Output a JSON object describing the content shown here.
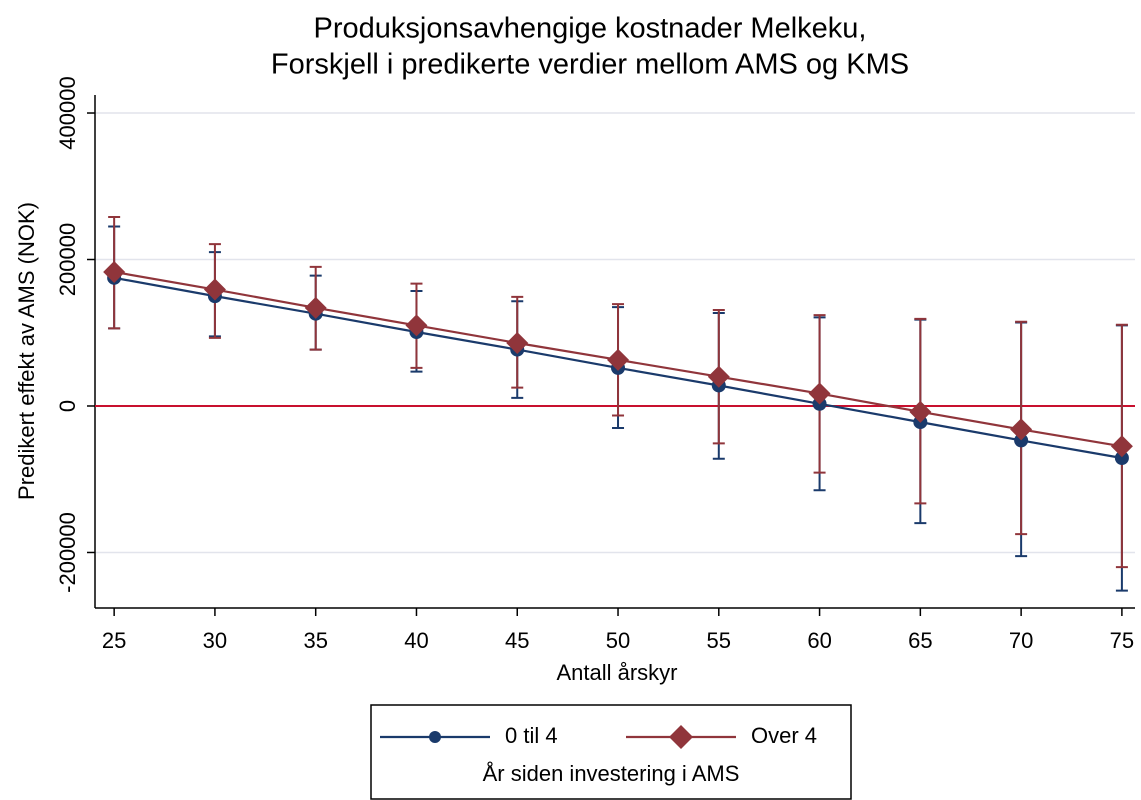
{
  "chart_data": {
    "type": "line",
    "title": [
      "Produksjonsavhengige kostnader Melkeku,",
      "Forskjell i predikerte verdier mellom AMS og KMS"
    ],
    "x_label": "Antall årskyr",
    "y_label": "Predikert effekt av AMS (NOK)",
    "x": [
      25,
      30,
      35,
      40,
      45,
      50,
      55,
      60,
      65,
      70,
      75
    ],
    "xlim": [
      24.05,
      75.65
    ],
    "xticks": [
      25,
      30,
      35,
      40,
      45,
      50,
      55,
      60,
      65,
      70,
      75
    ],
    "ylim": [
      -275800,
      424600
    ],
    "yticks": [
      -200000,
      0,
      200000,
      400000
    ],
    "grid": true,
    "reference_line": {
      "value": 0,
      "color": "#c8102e"
    },
    "legend_title": "År siden investering i AMS",
    "legend_position": "bottom",
    "series": [
      {
        "name": "0 til 4",
        "color": "#1a3a6b",
        "marker": "circle",
        "values": [
          175000,
          150000,
          126000,
          101000,
          77000,
          52000,
          28000,
          3000,
          -22000,
          -47000,
          -71000
        ],
        "lower": [
          106000,
          95000,
          77000,
          47000,
          11000,
          -30000,
          -72000,
          -115000,
          -160000,
          -205000,
          -252000
        ],
        "upper": [
          245000,
          210000,
          178000,
          157000,
          143000,
          135000,
          127000,
          121000,
          118000,
          114000,
          110000
        ]
      },
      {
        "name": "Over 4",
        "color": "#90353b",
        "marker": "diamond",
        "values": [
          183000,
          159000,
          134000,
          110000,
          86000,
          63000,
          40000,
          17000,
          -8000,
          -32000,
          -55000
        ],
        "lower": [
          106000,
          93000,
          77000,
          52000,
          25000,
          -13000,
          -51000,
          -91000,
          -133000,
          -175000,
          -220000
        ],
        "upper": [
          258000,
          221000,
          190000,
          167000,
          149000,
          139000,
          131000,
          124000,
          119000,
          115000,
          111000
        ]
      }
    ]
  }
}
